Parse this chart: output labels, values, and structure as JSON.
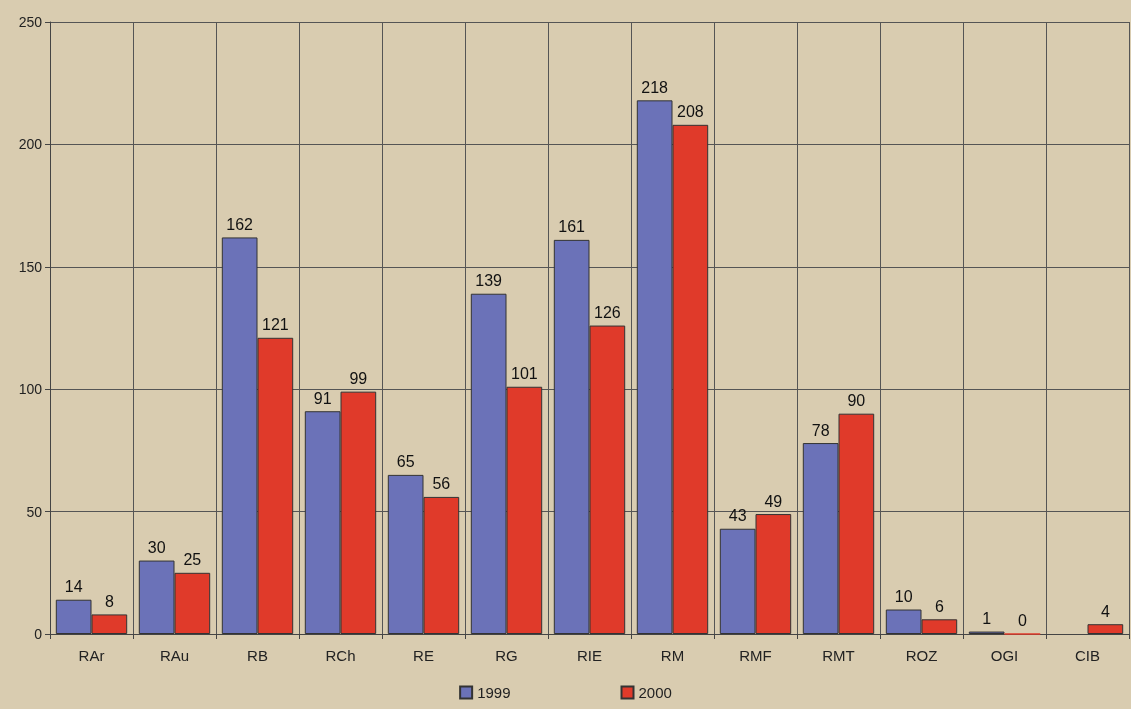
{
  "chart_data": {
    "type": "bar",
    "categories": [
      "RAr",
      "RAu",
      "RB",
      "RCh",
      "RE",
      "RG",
      "RIE",
      "RM",
      "RMF",
      "RMT",
      "ROZ",
      "OGI",
      "CIB"
    ],
    "series": [
      {
        "name": "1999",
        "color": "#6b72b8",
        "values": [
          14,
          30,
          162,
          91,
          65,
          139,
          161,
          218,
          43,
          78,
          10,
          1,
          null
        ]
      },
      {
        "name": "2000",
        "color": "#e03a2a",
        "values": [
          8,
          25,
          121,
          99,
          56,
          101,
          126,
          208,
          49,
          90,
          6,
          0,
          4
        ]
      }
    ],
    "ylim": [
      0,
      250
    ],
    "yticks": [
      0,
      50,
      100,
      150,
      200,
      250
    ],
    "grid": true,
    "legend": "bottom",
    "data_labels": true
  }
}
